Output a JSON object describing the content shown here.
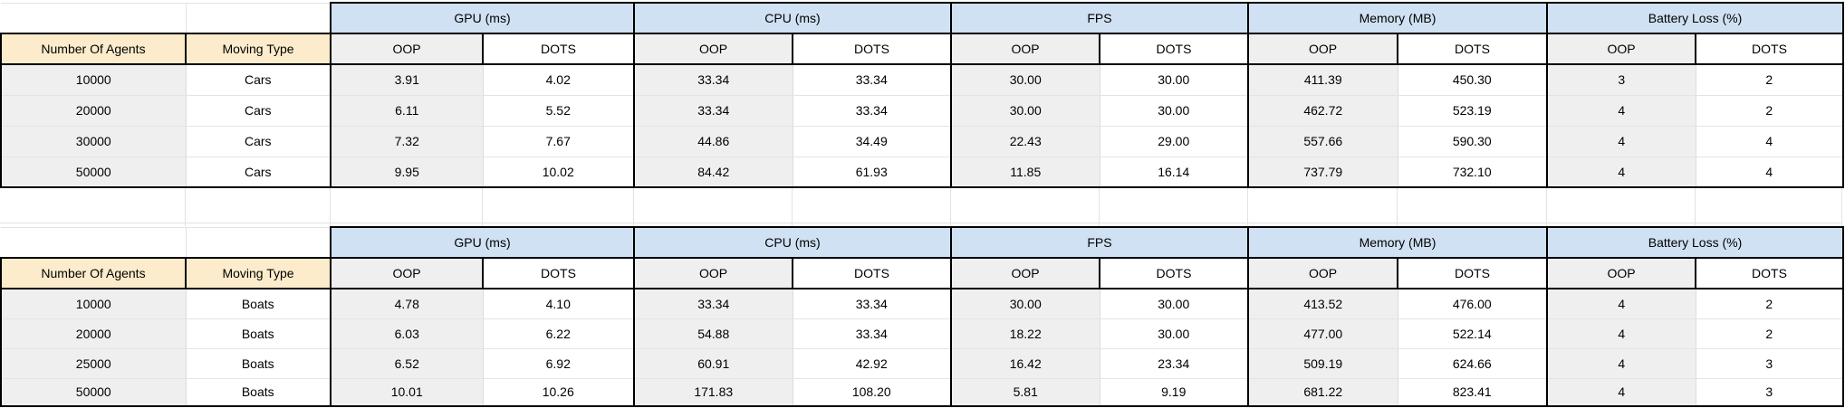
{
  "colors": {
    "group_header_blue": "#cfe1f2",
    "corner_header_tan": "#fceccb",
    "shaded_cell_gray": "#efefef"
  },
  "column_headers": {
    "agents": "Number Of Agents",
    "moving_type": "Moving Type"
  },
  "metric_groups": [
    "GPU (ms)",
    "CPU (ms)",
    "FPS",
    "Memory (MB)",
    "Battery Loss (%)"
  ],
  "sub_headers": [
    "OOP",
    "DOTS"
  ],
  "tables": [
    {
      "name": "cars",
      "rows": [
        {
          "agents": "10000",
          "moving_type": "Cars",
          "values": [
            "3.91",
            "4.02",
            "33.34",
            "33.34",
            "30.00",
            "30.00",
            "411.39",
            "450.30",
            "3",
            "2"
          ]
        },
        {
          "agents": "20000",
          "moving_type": "Cars",
          "values": [
            "6.11",
            "5.52",
            "33.34",
            "33.34",
            "30.00",
            "30.00",
            "462.72",
            "523.19",
            "4",
            "2"
          ]
        },
        {
          "agents": "30000",
          "moving_type": "Cars",
          "values": [
            "7.32",
            "7.67",
            "44.86",
            "34.49",
            "22.43",
            "29.00",
            "557.66",
            "590.30",
            "4",
            "4"
          ]
        },
        {
          "agents": "50000",
          "moving_type": "Cars",
          "values": [
            "9.95",
            "10.02",
            "84.42",
            "61.93",
            "11.85",
            "16.14",
            "737.79",
            "732.10",
            "4",
            "4"
          ]
        }
      ]
    },
    {
      "name": "boats",
      "rows": [
        {
          "agents": "10000",
          "moving_type": "Boats",
          "values": [
            "4.78",
            "4.10",
            "33.34",
            "33.34",
            "30.00",
            "30.00",
            "413.52",
            "476.00",
            "4",
            "2"
          ]
        },
        {
          "agents": "20000",
          "moving_type": "Boats",
          "values": [
            "6.03",
            "6.22",
            "54.88",
            "33.34",
            "18.22",
            "30.00",
            "477.00",
            "522.14",
            "4",
            "2"
          ]
        },
        {
          "agents": "25000",
          "moving_type": "Boats",
          "values": [
            "6.52",
            "6.92",
            "60.91",
            "42.92",
            "16.42",
            "23.34",
            "509.19",
            "624.66",
            "4",
            "3"
          ]
        },
        {
          "agents": "50000",
          "moving_type": "Boats",
          "values": [
            "10.01",
            "10.26",
            "171.83",
            "108.20",
            "5.81",
            "9.19",
            "681.22",
            "823.41",
            "4",
            "3"
          ]
        }
      ]
    }
  ]
}
